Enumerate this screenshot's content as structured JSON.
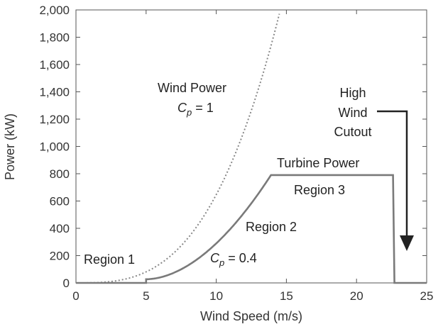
{
  "chart_data": {
    "type": "line",
    "title": "",
    "xlabel": "Wind Speed (m/s)",
    "ylabel": "Power (kW)",
    "xlim": [
      0,
      25
    ],
    "ylim": [
      0,
      2000
    ],
    "x_ticks": [
      0,
      5,
      10,
      15,
      20,
      25
    ],
    "x_tick_labels": [
      "0",
      "5",
      "10",
      "15",
      "20",
      "25"
    ],
    "y_ticks": [
      0,
      200,
      400,
      600,
      800,
      1000,
      1200,
      1400,
      1600,
      1800,
      2000
    ],
    "y_tick_labels": [
      "0",
      "200",
      "400",
      "600",
      "800",
      "1,000",
      "1,200",
      "1,400",
      "1,600",
      "1,800",
      "2,000"
    ],
    "grid": false,
    "series": [
      {
        "name": "Wind Power Cp = 1",
        "style": "dotted",
        "color": "#888888",
        "x": [
          0,
          2,
          4,
          6,
          8,
          10,
          11,
          12,
          13,
          14,
          14.5
        ],
        "y": [
          0,
          5,
          43,
          146,
          346,
          676,
          900,
          1168,
          1485,
          1855,
          2000
        ]
      },
      {
        "name": "Turbine Power",
        "style": "solid",
        "color": "#7a7a7a",
        "x": [
          0,
          5,
          5,
          6,
          8,
          10,
          12,
          13.9,
          22.6,
          22.7,
          25
        ],
        "y": [
          0,
          0,
          27,
          58,
          138,
          270,
          468,
          790,
          790,
          0,
          0
        ]
      }
    ],
    "annotations": {
      "wind_power_label": "Wind Power",
      "cp1_label": "p",
      "cp1_prefix": "C",
      "cp1_value": "= 1",
      "turbine_power_label": "Turbine Power",
      "region1": "Region 1",
      "region2": "Region 2",
      "region3": "Region 3",
      "cp04_prefix": "C",
      "cp04_sub": "p",
      "cp04_value": "= 0.4",
      "cutout_line1": "High",
      "cutout_line2": "Wind",
      "cutout_line3": "Cutout"
    }
  }
}
